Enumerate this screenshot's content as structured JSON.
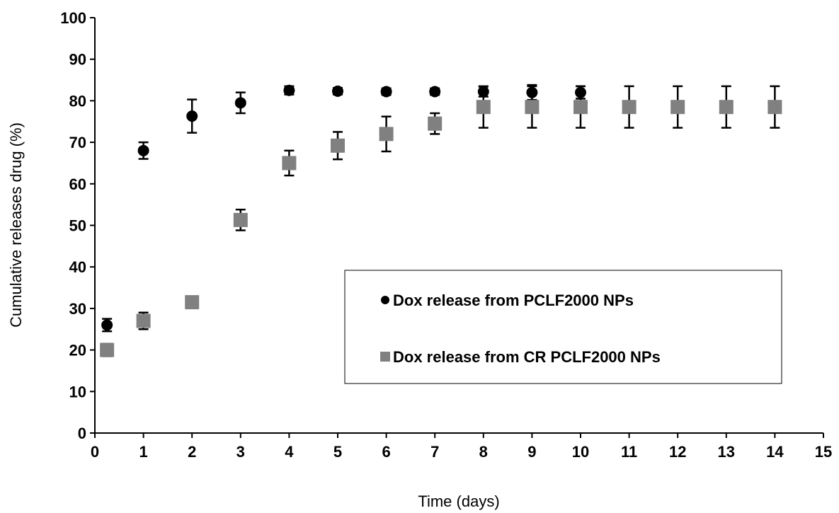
{
  "chart_data": {
    "type": "scatter",
    "title": "",
    "xlabel": "Time (days)",
    "ylabel": "Cumulative releases drug (%)",
    "xlim": [
      0,
      15
    ],
    "ylim": [
      0,
      100
    ],
    "xticks": [
      "0",
      "1",
      "2",
      "3",
      "4",
      "5",
      "6",
      "7",
      "8",
      "9",
      "10",
      "11",
      "12",
      "13",
      "14",
      "15"
    ],
    "yticks": [
      "0",
      "10",
      "20",
      "30",
      "40",
      "50",
      "60",
      "70",
      "80",
      "90",
      "100"
    ],
    "grid": false,
    "legend_position": "center-right",
    "series": [
      {
        "name": "Dox release from PCLF2000 NPs",
        "marker": "circle",
        "color": "#000000",
        "points": [
          {
            "x": 0.25,
            "y": 26,
            "err": 1.5
          },
          {
            "x": 1,
            "y": 68,
            "err": 2
          },
          {
            "x": 2,
            "y": 76.3,
            "err": 4
          },
          {
            "x": 3,
            "y": 79.5,
            "err": 2.5
          },
          {
            "x": 4,
            "y": 82.5,
            "err": 1
          },
          {
            "x": 5,
            "y": 82.3,
            "err": 0.8
          },
          {
            "x": 6,
            "y": 82.2,
            "err": 0.8
          },
          {
            "x": 7,
            "y": 82.2,
            "err": 0.8
          },
          {
            "x": 8,
            "y": 82.2,
            "err": 1.2
          },
          {
            "x": 9,
            "y": 82.0,
            "err": 1.8
          },
          {
            "x": 10,
            "y": 82.0,
            "err": 1.5
          }
        ]
      },
      {
        "name": "Dox release from CR PCLF2000 NPs",
        "marker": "square",
        "color": "#808080",
        "points": [
          {
            "x": 0.25,
            "y": 20,
            "err": 1.5
          },
          {
            "x": 1,
            "y": 27,
            "err": 2
          },
          {
            "x": 2,
            "y": 31.5,
            "err": 0.5
          },
          {
            "x": 3,
            "y": 51.3,
            "err": 2.5
          },
          {
            "x": 4,
            "y": 65,
            "err": 3
          },
          {
            "x": 5,
            "y": 69.2,
            "err": 3.3
          },
          {
            "x": 6,
            "y": 72.0,
            "err": 4.2
          },
          {
            "x": 7,
            "y": 74.5,
            "err": 2.5
          },
          {
            "x": 8,
            "y": 78.5,
            "err": 5
          },
          {
            "x": 9,
            "y": 78.5,
            "err": 5
          },
          {
            "x": 10,
            "y": 78.5,
            "err": 5
          },
          {
            "x": 11,
            "y": 78.5,
            "err": 5
          },
          {
            "x": 12,
            "y": 78.5,
            "err": 5
          },
          {
            "x": 13,
            "y": 78.5,
            "err": 5
          },
          {
            "x": 14,
            "y": 78.5,
            "err": 5
          }
        ]
      }
    ]
  }
}
